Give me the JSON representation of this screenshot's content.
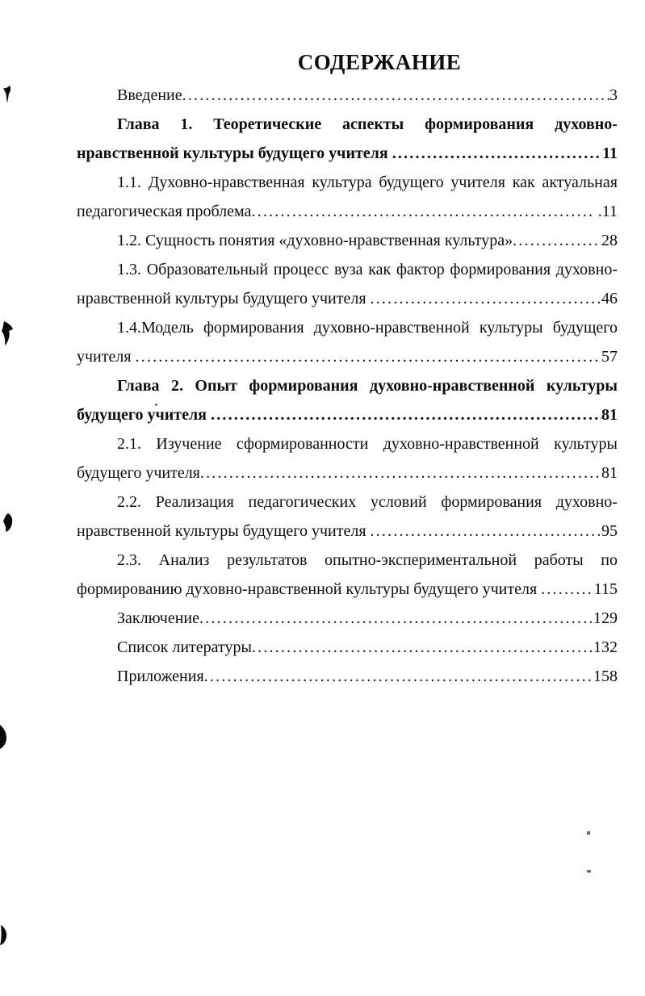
{
  "document": {
    "title": "СОДЕРЖАНИЕ",
    "lines": [
      {
        "type": "leader",
        "indent": true,
        "bold": false,
        "text": "Введение",
        "page": "3"
      },
      {
        "type": "justify",
        "indent": true,
        "bold": true,
        "text": "Глава 1. Теоретические аспекты формирования духовно-"
      },
      {
        "type": "leader",
        "indent": false,
        "bold": true,
        "text": "нравственной культуры будущего учителя ",
        "page": "11"
      },
      {
        "type": "justify",
        "indent": true,
        "bold": false,
        "text": "1.1. Духовно-нравственная культура будущего учителя как актуальная"
      },
      {
        "type": "leader",
        "indent": false,
        "bold": false,
        "text": "педагогическая проблема",
        "page": " .11"
      },
      {
        "type": "leader",
        "indent": true,
        "bold": false,
        "text": "1.2. Сущность понятия «духовно-нравственная культура»",
        "page": "28"
      },
      {
        "type": "justify",
        "indent": true,
        "bold": false,
        "text": "1.3. Образовательный процесс вуза как фактор формирования духовно-"
      },
      {
        "type": "leader",
        "indent": false,
        "bold": false,
        "text": "нравственной культуры будущего учителя ",
        "page": "46"
      },
      {
        "type": "justify",
        "indent": true,
        "bold": false,
        "text": "1.4.Модель формирования духовно-нравственной культуры будущего"
      },
      {
        "type": "leader",
        "indent": false,
        "bold": false,
        "text": "учителя ",
        "page": "57"
      },
      {
        "type": "justify",
        "indent": true,
        "bold": true,
        "text": "Глава 2. Опыт формирования духовно-нравственной культуры"
      },
      {
        "type": "leader",
        "indent": false,
        "bold": true,
        "text": "будущего учителя ",
        "page": "81"
      },
      {
        "type": "justify",
        "indent": true,
        "bold": false,
        "text": "2.1. Изучение сформированности духовно-нравственной культуры"
      },
      {
        "type": "leader",
        "indent": false,
        "bold": false,
        "text": "будущего учителя",
        "page": "81"
      },
      {
        "type": "justify",
        "indent": true,
        "bold": false,
        "text": "2.2. Реализация педагогических условий формирования духовно-"
      },
      {
        "type": "leader",
        "indent": false,
        "bold": false,
        "text": "нравственной культуры будущего учителя ",
        "page": "95"
      },
      {
        "type": "justify",
        "indent": true,
        "bold": false,
        "text": "2.3. Анализ результатов опытно-экспериментальной работы по"
      },
      {
        "type": "leader",
        "indent": false,
        "bold": false,
        "text": "формированию духовно-нравственной культуры будущего учителя ",
        "page": "115"
      },
      {
        "type": "leader",
        "indent": true,
        "bold": false,
        "text": "Заключение",
        "page": "129"
      },
      {
        "type": "leader",
        "indent": true,
        "bold": false,
        "text": "Список литературы",
        "page": "132"
      },
      {
        "type": "leader",
        "indent": true,
        "bold": false,
        "text": "Приложения",
        "page": "158"
      }
    ]
  }
}
